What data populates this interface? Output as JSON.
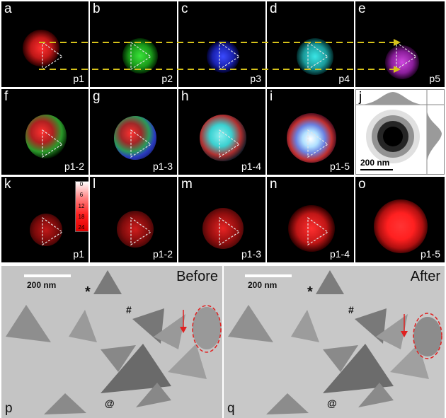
{
  "colors": {
    "p1": "#ff2a2a",
    "p2": "#2bd22b",
    "p3": "#2a3aff",
    "p4": "#29d4d4",
    "p5": "#c637d6",
    "arrow": "#d6c21a",
    "tri": "#e5e5e5",
    "redmark": "#e02020"
  },
  "row1": [
    {
      "letter": "a",
      "label": "p1"
    },
    {
      "letter": "b",
      "label": "p2"
    },
    {
      "letter": "c",
      "label": "p3"
    },
    {
      "letter": "d",
      "label": "p4"
    },
    {
      "letter": "e",
      "label": "p5"
    }
  ],
  "row2": [
    {
      "letter": "f",
      "label": "p1-2"
    },
    {
      "letter": "g",
      "label": "p1-3"
    },
    {
      "letter": "h",
      "label": "p1-4"
    },
    {
      "letter": "i",
      "label": "p1-5"
    },
    {
      "letter": "j",
      "scale": "200 nm"
    }
  ],
  "row3": [
    {
      "letter": "k",
      "label": "p1"
    },
    {
      "letter": "l",
      "label": "p1-2"
    },
    {
      "letter": "m",
      "label": "p1-3"
    },
    {
      "letter": "n",
      "label": "p1-4"
    },
    {
      "letter": "o",
      "label": "p1-5"
    }
  ],
  "colorbar": {
    "ticks": [
      "0",
      "6",
      "12",
      "18",
      "24"
    ]
  },
  "tem": [
    {
      "letter": "p",
      "title": "Before",
      "scale": "200 nm",
      "marks": [
        "*",
        "#",
        "@"
      ]
    },
    {
      "letter": "q",
      "title": "After",
      "scale": "200 nm",
      "marks": [
        "*",
        "#",
        "@"
      ]
    }
  ]
}
